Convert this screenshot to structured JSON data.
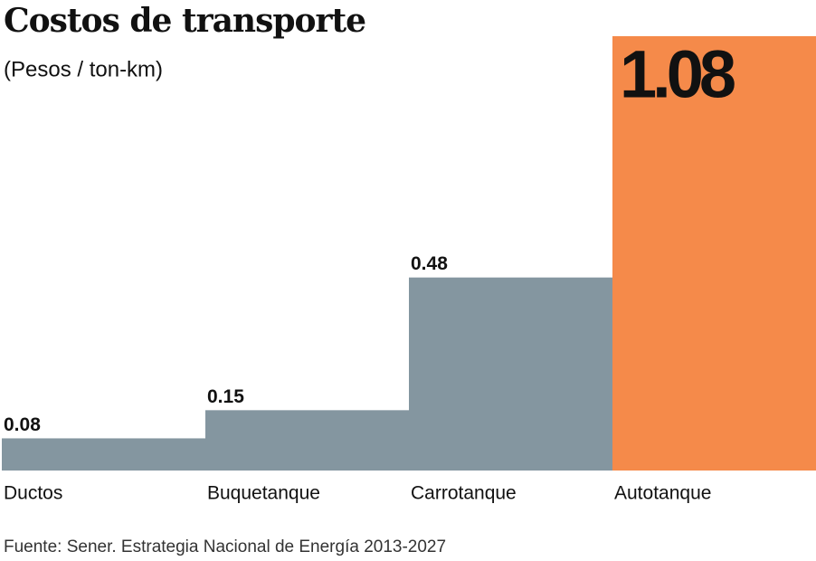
{
  "chart_data": {
    "type": "bar",
    "title": "Costos de transporte",
    "subtitle": "(Pesos / ton-km)",
    "categories": [
      "Ductos",
      "Buquetanque",
      "Carrotanque",
      "Autotanque"
    ],
    "values": [
      0.08,
      0.15,
      0.48,
      1.08
    ],
    "colors": [
      "#8496a0",
      "#8496a0",
      "#8496a0",
      "#f58a4a"
    ],
    "ylim": [
      0,
      1.08
    ],
    "source": "Fuente: Sener. Estrategia Nacional de Energía 2013-2027"
  }
}
